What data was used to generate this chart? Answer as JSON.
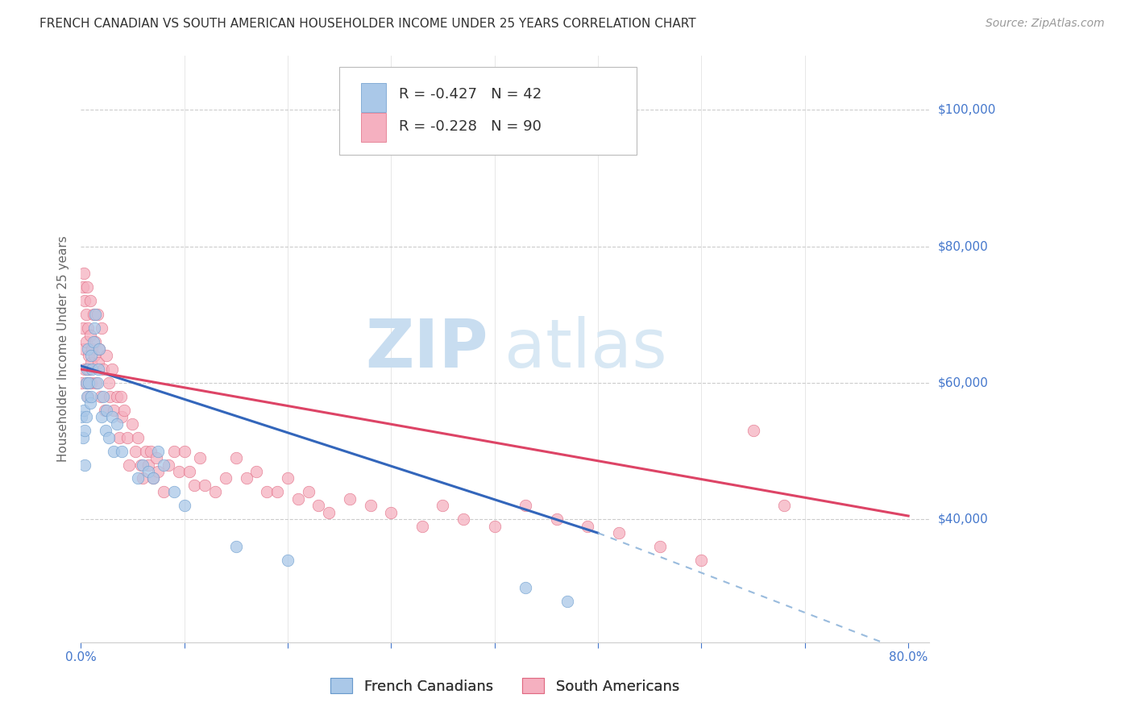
{
  "title": "FRENCH CANADIAN VS SOUTH AMERICAN HOUSEHOLDER INCOME UNDER 25 YEARS CORRELATION CHART",
  "source": "Source: ZipAtlas.com",
  "ylabel": "Householder Income Under 25 years",
  "background_color": "#ffffff",
  "watermark_zip": "ZIP",
  "watermark_atlas": "atlas",
  "right_ytick_labels": [
    "$100,000",
    "$80,000",
    "$60,000",
    "$40,000"
  ],
  "right_ytick_values": [
    100000,
    80000,
    60000,
    40000
  ],
  "ylim": [
    22000,
    108000
  ],
  "xlim": [
    0.0,
    0.82
  ],
  "grid_color": "#cccccc",
  "french_canadians": {
    "label": "French Canadians",
    "R": -0.427,
    "N": 42,
    "color": "#aac8e8",
    "edge_color": "#6699cc",
    "x": [
      0.001,
      0.002,
      0.003,
      0.004,
      0.004,
      0.005,
      0.005,
      0.006,
      0.006,
      0.007,
      0.008,
      0.009,
      0.01,
      0.01,
      0.011,
      0.012,
      0.013,
      0.014,
      0.016,
      0.017,
      0.018,
      0.02,
      0.022,
      0.024,
      0.025,
      0.027,
      0.03,
      0.032,
      0.035,
      0.04,
      0.055,
      0.06,
      0.065,
      0.07,
      0.075,
      0.08,
      0.09,
      0.1,
      0.15,
      0.2,
      0.43,
      0.47
    ],
    "y": [
      55000,
      52000,
      56000,
      53000,
      48000,
      60000,
      55000,
      58000,
      62000,
      65000,
      60000,
      57000,
      64000,
      58000,
      62000,
      66000,
      68000,
      70000,
      60000,
      62000,
      65000,
      55000,
      58000,
      53000,
      56000,
      52000,
      55000,
      50000,
      54000,
      50000,
      46000,
      48000,
      47000,
      46000,
      50000,
      48000,
      44000,
      42000,
      36000,
      34000,
      30000,
      28000
    ]
  },
  "south_americans": {
    "label": "South Americans",
    "R": -0.228,
    "N": 90,
    "color": "#f5b0c0",
    "edge_color": "#e06880",
    "x": [
      0.001,
      0.002,
      0.002,
      0.003,
      0.003,
      0.004,
      0.004,
      0.005,
      0.005,
      0.006,
      0.006,
      0.007,
      0.007,
      0.008,
      0.008,
      0.009,
      0.009,
      0.01,
      0.01,
      0.011,
      0.012,
      0.013,
      0.014,
      0.015,
      0.016,
      0.017,
      0.018,
      0.019,
      0.02,
      0.022,
      0.023,
      0.025,
      0.027,
      0.028,
      0.03,
      0.032,
      0.035,
      0.037,
      0.039,
      0.04,
      0.042,
      0.045,
      0.047,
      0.05,
      0.053,
      0.055,
      0.058,
      0.06,
      0.063,
      0.065,
      0.068,
      0.07,
      0.073,
      0.075,
      0.08,
      0.085,
      0.09,
      0.095,
      0.1,
      0.105,
      0.11,
      0.115,
      0.12,
      0.13,
      0.14,
      0.15,
      0.16,
      0.17,
      0.18,
      0.19,
      0.2,
      0.21,
      0.22,
      0.23,
      0.24,
      0.26,
      0.28,
      0.3,
      0.33,
      0.35,
      0.37,
      0.4,
      0.43,
      0.46,
      0.49,
      0.52,
      0.56,
      0.6,
      0.65,
      0.68
    ],
    "y": [
      60000,
      74000,
      68000,
      76000,
      65000,
      72000,
      62000,
      70000,
      66000,
      74000,
      60000,
      68000,
      58000,
      64000,
      62000,
      67000,
      72000,
      63000,
      60000,
      65000,
      70000,
      64000,
      66000,
      60000,
      70000,
      63000,
      65000,
      58000,
      68000,
      62000,
      56000,
      64000,
      60000,
      58000,
      62000,
      56000,
      58000,
      52000,
      58000,
      55000,
      56000,
      52000,
      48000,
      54000,
      50000,
      52000,
      48000,
      46000,
      50000,
      48000,
      50000,
      46000,
      49000,
      47000,
      44000,
      48000,
      50000,
      47000,
      50000,
      47000,
      45000,
      49000,
      45000,
      44000,
      46000,
      49000,
      46000,
      47000,
      44000,
      44000,
      46000,
      43000,
      44000,
      42000,
      41000,
      43000,
      42000,
      41000,
      39000,
      42000,
      40000,
      39000,
      42000,
      40000,
      39000,
      38000,
      36000,
      34000,
      53000,
      42000
    ]
  },
  "blue_line": {
    "x0": 0.0,
    "x1": 0.5,
    "y0": 62500,
    "y1": 38000
  },
  "pink_line": {
    "x0": 0.0,
    "x1": 0.8,
    "y0": 62000,
    "y1": 40500
  },
  "dash_line": {
    "x0": 0.5,
    "x1": 0.8,
    "y0": 38000,
    "y1": 20500
  },
  "title_fontsize": 11,
  "axis_label_fontsize": 11,
  "tick_fontsize": 11,
  "legend_fontsize": 13,
  "watermark_fontsize_zip": 60,
  "watermark_fontsize_atlas": 60,
  "source_fontsize": 10,
  "source_color": "#999999",
  "marker_size": 110,
  "marker_alpha": 0.75
}
